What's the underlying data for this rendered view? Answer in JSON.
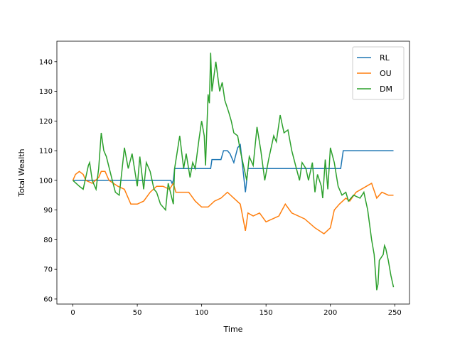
{
  "chart_data": {
    "type": "line",
    "xlabel": "Time",
    "ylabel": "Total Wealth",
    "xlim": [
      -12.45,
      261.45
    ],
    "ylim": [
      58.3,
      146.9
    ],
    "xticks": [
      0,
      50,
      100,
      150,
      200,
      250
    ],
    "yticks": [
      60,
      70,
      80,
      90,
      100,
      110,
      120,
      130,
      140
    ],
    "legend": "upper right",
    "series": [
      {
        "name": "RL",
        "color": "#1f77b4",
        "x": [
          0,
          76,
          77,
          78,
          79,
          107,
          108,
          115,
          117,
          120,
          122,
          125,
          128,
          130,
          132,
          134,
          136,
          208,
          210,
          249
        ],
        "values": [
          100,
          100,
          99,
          100,
          104,
          104,
          107,
          107,
          110,
          110,
          109,
          106,
          111,
          112,
          104,
          96,
          104,
          104,
          110,
          110
        ]
      },
      {
        "name": "OU",
        "color": "#ff7f0e",
        "x": [
          0,
          2,
          5,
          8,
          10,
          15,
          20,
          22,
          25,
          28,
          35,
          40,
          45,
          50,
          55,
          60,
          65,
          70,
          75,
          78,
          80,
          90,
          95,
          100,
          105,
          110,
          115,
          120,
          125,
          130,
          134,
          136,
          140,
          145,
          150,
          160,
          165,
          170,
          180,
          188,
          195,
          200,
          203,
          207,
          212,
          215,
          220,
          228,
          232,
          236,
          240,
          245,
          249
        ],
        "values": [
          100,
          102,
          103,
          102,
          100,
          99,
          101,
          103,
          103,
          100,
          98,
          97,
          92,
          92,
          93,
          96,
          98,
          98,
          97,
          99,
          96,
          96,
          93,
          91,
          91,
          93,
          94,
          96,
          94,
          92,
          83,
          89,
          88,
          89,
          86,
          88,
          92,
          89,
          87,
          84,
          82,
          84,
          90,
          92,
          94,
          93,
          96,
          98,
          99,
          94,
          96,
          95,
          95
        ]
      },
      {
        "name": "DM",
        "color": "#2ca02c",
        "x": [
          0,
          5,
          8,
          12,
          13,
          15,
          18,
          20,
          22,
          24,
          26,
          30,
          33,
          36,
          38,
          40,
          43,
          46,
          50,
          52,
          55,
          57,
          60,
          62,
          63,
          65,
          68,
          72,
          74,
          78,
          79,
          83,
          86,
          88,
          91,
          93,
          95,
          98,
          100,
          102,
          103,
          105,
          106,
          107,
          108,
          111,
          114,
          116,
          118,
          121,
          123,
          125,
          128,
          130,
          133,
          135,
          137,
          140,
          143,
          146,
          149,
          152,
          156,
          158,
          161,
          164,
          167,
          170,
          173,
          176,
          178,
          181,
          183,
          186,
          188,
          190,
          193,
          194,
          196,
          198,
          200,
          203,
          206,
          209,
          212,
          214,
          218,
          223,
          226,
          229,
          232,
          234,
          236,
          237,
          238,
          241,
          242,
          243,
          245,
          247,
          249
        ],
        "values": [
          100,
          98,
          97,
          105,
          106,
          100,
          97,
          104,
          116,
          110,
          108,
          101,
          96,
          95,
          103,
          111,
          104,
          109,
          98,
          108,
          97,
          106,
          103,
          99,
          97,
          96,
          92,
          90,
          99,
          92,
          104,
          115,
          104,
          109,
          101,
          106,
          104,
          114,
          120,
          115,
          105,
          129,
          126,
          143,
          130,
          140,
          130,
          133,
          127,
          123,
          120,
          116,
          115,
          110,
          104,
          100,
          108,
          105,
          118,
          110,
          100,
          107,
          115,
          113,
          122,
          116,
          117,
          110,
          105,
          100,
          106,
          104,
          100,
          106,
          96,
          102,
          98,
          94,
          107,
          97,
          111,
          106,
          98,
          95,
          96,
          93,
          95,
          94,
          96,
          90,
          80,
          75,
          63,
          65,
          73,
          75,
          78,
          77,
          73,
          68,
          64
        ]
      }
    ]
  }
}
